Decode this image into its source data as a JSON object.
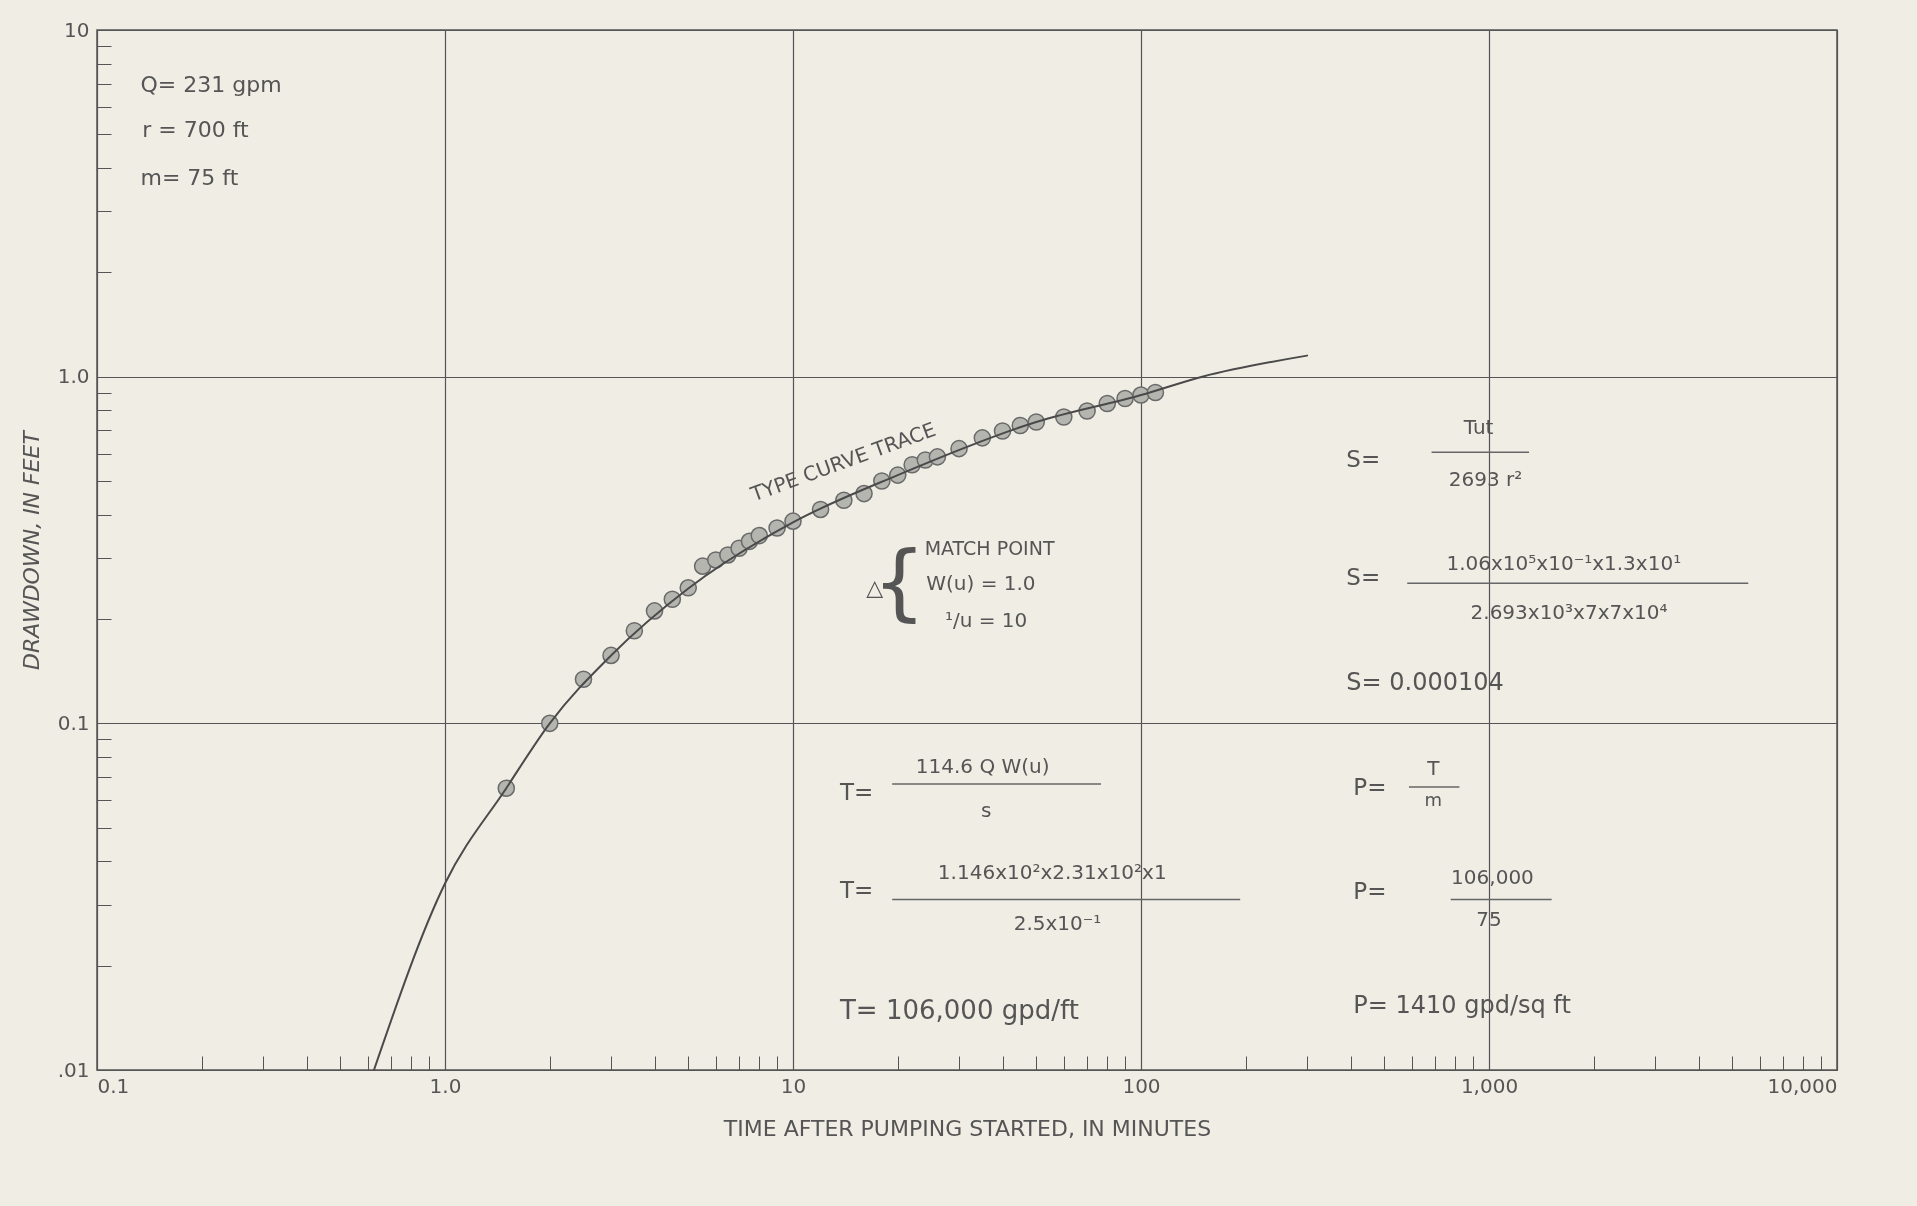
{
  "chart_data": {
    "type": "scatter",
    "xlabel": "TIME AFTER PUMPING STARTED, IN MINUTES",
    "ylabel": "DRAWDOWN, IN FEET",
    "log": "xy",
    "grid": true,
    "xlim": [
      0.1,
      10000
    ],
    "ylim": [
      0.01,
      10
    ],
    "xticks": [
      {
        "value": 0.1,
        "label": "0.1"
      },
      {
        "value": 0.2,
        "label": null
      },
      {
        "value": 0.3,
        "label": null
      },
      {
        "value": 0.4,
        "label": null
      },
      {
        "value": 0.5,
        "label": null
      },
      {
        "value": 0.6,
        "label": null
      },
      {
        "value": 0.7,
        "label": null
      },
      {
        "value": 0.8,
        "label": null
      },
      {
        "value": 0.9,
        "label": null
      },
      {
        "value": 1,
        "label": "1.0"
      },
      {
        "value": 2,
        "label": null
      },
      {
        "value": 3,
        "label": null
      },
      {
        "value": 4,
        "label": null
      },
      {
        "value": 5,
        "label": null
      },
      {
        "value": 6,
        "label": null
      },
      {
        "value": 7,
        "label": null
      },
      {
        "value": 8,
        "label": null
      },
      {
        "value": 9,
        "label": null
      },
      10,
      {
        "value": 20,
        "label": null
      },
      {
        "value": 30,
        "label": null
      },
      {
        "value": 40,
        "label": null
      },
      {
        "value": 50,
        "label": null
      },
      {
        "value": 60,
        "label": null
      },
      {
        "value": 70,
        "label": null
      },
      {
        "value": 80,
        "label": null
      },
      {
        "value": 90,
        "label": null
      },
      100,
      {
        "value": 200,
        "label": null
      },
      {
        "value": 300,
        "label": null
      },
      {
        "value": 400,
        "label": null
      },
      {
        "value": 500,
        "label": null
      },
      {
        "value": 600,
        "label": null
      },
      {
        "value": 700,
        "label": null
      },
      {
        "value": 800,
        "label": null
      },
      {
        "value": 900,
        "label": null
      },
      {
        "value": 1000,
        "label": "1,000"
      },
      {
        "value": 2000,
        "label": null
      },
      {
        "value": 3000,
        "label": null
      },
      {
        "value": 4000,
        "label": null
      },
      {
        "value": 5000,
        "label": null
      },
      {
        "value": 6000,
        "label": null
      },
      {
        "value": 7000,
        "label": null
      },
      {
        "value": 8000,
        "label": null
      },
      {
        "value": 9000,
        "label": null
      },
      {
        "value": 10000,
        "label": "10,000"
      }
    ],
    "yticks": [
      {
        "value": 0.01,
        "label": ".01"
      },
      {
        "value": 0.02,
        "label": null
      },
      {
        "value": 0.03,
        "label": null
      },
      {
        "value": 0.04,
        "label": null
      },
      {
        "value": 0.05,
        "label": null
      },
      {
        "value": 0.06,
        "label": null
      },
      {
        "value": 0.07,
        "label": null
      },
      {
        "value": 0.08,
        "label": null
      },
      {
        "value": 0.09,
        "label": null
      },
      0.1,
      {
        "value": 0.2,
        "label": null
      },
      {
        "value": 0.3,
        "label": null
      },
      {
        "value": 0.4,
        "label": null
      },
      {
        "value": 0.5,
        "label": null
      },
      {
        "value": 0.6,
        "label": null
      },
      {
        "value": 0.7,
        "label": null
      },
      {
        "value": 0.8,
        "label": null
      },
      {
        "value": 0.9,
        "label": null
      },
      {
        "value": 1,
        "label": "1.0"
      },
      {
        "value": 2,
        "label": null
      },
      {
        "value": 3,
        "label": null
      },
      {
        "value": 4,
        "label": null
      },
      {
        "value": 5,
        "label": null
      },
      {
        "value": 6,
        "label": null
      },
      {
        "value": 7,
        "label": null
      },
      {
        "value": 8,
        "label": null
      },
      {
        "value": 9,
        "label": null
      },
      10
    ],
    "series": [
      {
        "type": "line",
        "marker": "none",
        "line_style": "solid",
        "color": "#4a4a4a",
        "x": [
          0.625,
          1,
          1.5,
          2,
          3,
          5,
          10,
          20,
          50,
          100,
          150,
          300
        ],
        "values": [
          0.01,
          0.0345,
          0.065,
          0.1,
          0.157,
          0.245,
          0.38,
          0.52,
          0.74,
          0.885,
          1.0,
          1.15
        ]
      },
      {
        "type": "scatter",
        "marker": "circle",
        "color": "#b5b5b0",
        "x": [
          1.5,
          2,
          2.5,
          3,
          3.5,
          4,
          4.5,
          5,
          5.5,
          6,
          6.5,
          7,
          7.5,
          8,
          9,
          10,
          12,
          14,
          16,
          18,
          20,
          22,
          24,
          26,
          30,
          35,
          40,
          45,
          50,
          60,
          70,
          80,
          90,
          100,
          110
        ],
        "values": [
          0.065,
          0.1,
          0.134,
          0.157,
          0.185,
          0.211,
          0.228,
          0.246,
          0.284,
          0.296,
          0.306,
          0.32,
          0.335,
          0.348,
          0.366,
          0.383,
          0.414,
          0.44,
          0.46,
          0.5,
          0.52,
          0.557,
          0.575,
          0.587,
          0.62,
          0.666,
          0.697,
          0.723,
          0.74,
          0.765,
          0.796,
          0.837,
          0.865,
          0.885,
          0.9
        ]
      }
    ],
    "annotations": [
      "Q= 231 gpm",
      "r = 700 ft",
      "m= 75 ft",
      "TYPE CURVE TRACE",
      "△",
      "{",
      "MATCH POINT",
      "W(u) = 1.0",
      "¹/u = 10",
      "S=",
      "Tut",
      "2693 r²",
      "S=",
      "1.06x10⁵x10⁻¹x1.3x10¹",
      "2.693x10³x7x7x10⁴",
      "S= 0.000104",
      "T=",
      "114.6 Q W(u)",
      "s",
      "T=",
      "1.146x10²x2.31x10²x1",
      "2.5x10⁻¹",
      "T= 106,000 gpd/ft",
      "P=",
      "T",
      "m",
      "P=",
      "106,000",
      "75",
      "P= 1410 gpd/sq ft"
    ]
  }
}
